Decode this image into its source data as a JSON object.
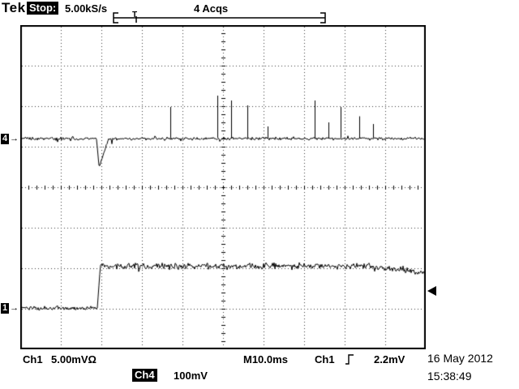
{
  "header": {
    "logo": "Tek",
    "acq_state": "Stop:",
    "sample_rate": "5.00kS/s",
    "acq_count": "4 Acqs"
  },
  "record_view": {
    "trigger_marker": "T"
  },
  "markers": {
    "ch4_number": "4",
    "ch1_number": "1",
    "arrow": "→"
  },
  "readouts": {
    "ch1_label": "Ch1",
    "ch1_scale": "5.00mVΩ",
    "timebase": "M10.0ms",
    "trigger_source": "Ch1",
    "trigger_level": "2.2mV",
    "ch4_label": "Ch4",
    "ch4_scale": "100mV"
  },
  "clock": {
    "date": "16 May 2012",
    "time": "15:38:49"
  },
  "icons": {
    "trigger_slope": "rising-edge",
    "trigger_level_marker": "left-arrow",
    "channel_position_marker": "right-arrow"
  },
  "colors": {
    "foreground": "#000000",
    "background": "#ffffff",
    "invert_bg": "#000000",
    "invert_fg": "#ffffff"
  },
  "chart_data": {
    "type": "line",
    "title": "Oscilloscope acquisition, stopped after 4 acquisitions at 5.00kS/s",
    "x_axis": {
      "divisions": 10,
      "time_per_division": "10.0ms",
      "total_span": "100ms",
      "grid": "dotted"
    },
    "y_axis": {
      "divisions": 8,
      "grid": "dotted"
    },
    "series": [
      {
        "name": "Ch4",
        "volts_per_division": "100mV",
        "baseline_div": 2.8,
        "noise_amp_div": 0.05,
        "glitch": {
          "x_div": 1.9,
          "depth_div": 0.66,
          "recover_div": 0.22
        },
        "spikes": [
          {
            "x_div": 3.7,
            "height_div": 0.78
          },
          {
            "x_div": 4.86,
            "height_div": 1.06
          },
          {
            "x_div": 5.2,
            "height_div": 0.94
          },
          {
            "x_div": 5.6,
            "height_div": 0.82
          },
          {
            "x_div": 6.1,
            "height_div": 0.3
          },
          {
            "x_div": 7.26,
            "height_div": 0.94
          },
          {
            "x_div": 7.6,
            "height_div": 0.4
          },
          {
            "x_div": 7.9,
            "height_div": 0.78
          },
          {
            "x_div": 8.36,
            "height_div": 0.55
          },
          {
            "x_div": 8.7,
            "height_div": 0.36
          }
        ]
      },
      {
        "name": "Ch1",
        "volts_per_division": "5.00mV",
        "pre_step_level_div": 6.98,
        "post_step_level_div": 5.95,
        "step_x_div": 1.9,
        "noise_pre_amp_div": 0.07,
        "noise_post_amp_div": 0.11,
        "end_sag_div": 0.18
      }
    ],
    "trigger": {
      "source": "Ch1",
      "level": "2.2mV",
      "slope": "rising",
      "level_marker_div": 6.55,
      "position_frac": 0.12
    }
  }
}
